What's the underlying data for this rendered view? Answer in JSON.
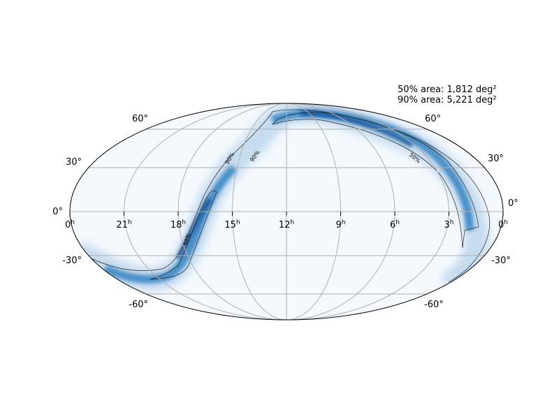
{
  "annotation": [
    "50% area: 1,812 deg²",
    "90% area: 5,221 deg²"
  ],
  "ra_labels": [
    "0",
    "21",
    "18",
    "15",
    "12",
    "9",
    "6",
    "3",
    "0"
  ],
  "ra_unit": "h",
  "dec_labels_left": [
    "60°",
    "30°",
    "0°",
    "-30°",
    "-60°"
  ],
  "dec_labels_right": [
    "60°",
    "30°",
    "0°",
    "-30°",
    "-60°"
  ],
  "contour_labels": [
    "90%",
    "90%",
    "50%",
    "50%"
  ]
}
